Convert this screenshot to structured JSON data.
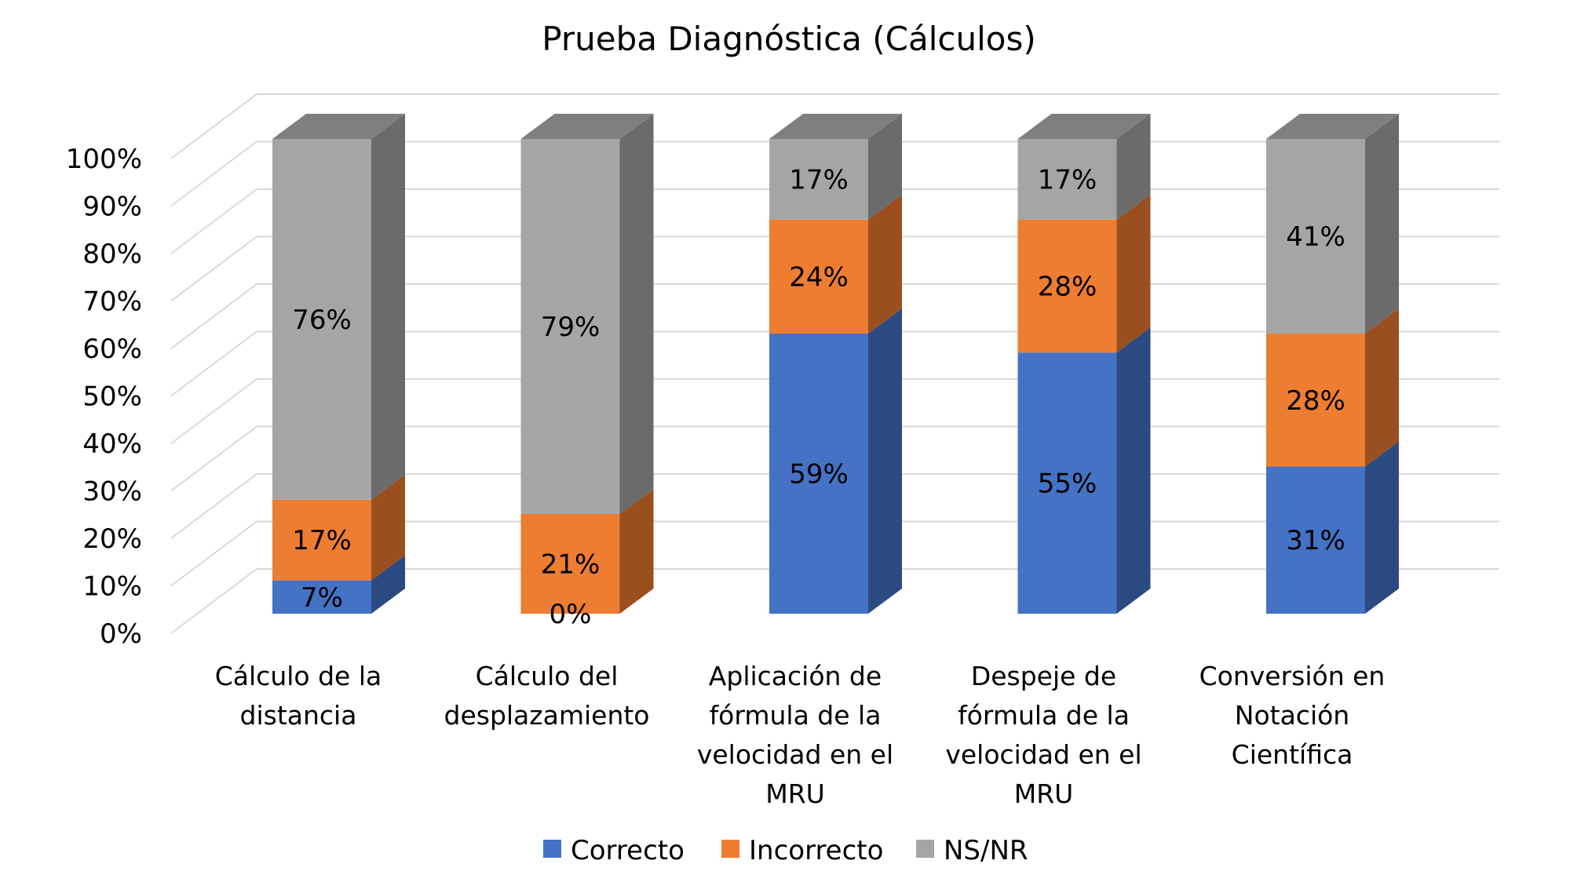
{
  "chart_data": {
    "type": "bar",
    "subtype": "3d-stacked-100",
    "title": "Prueba Diagnóstica (Cálculos)",
    "xlabel": "",
    "ylabel": "",
    "ylim": [
      0,
      100
    ],
    "y_ticks": [
      "0%",
      "10%",
      "20%",
      "30%",
      "40%",
      "50%",
      "60%",
      "70%",
      "80%",
      "90%",
      "100%"
    ],
    "grid": true,
    "legend_position": "bottom",
    "categories": [
      [
        "Cálculo de la",
        "distancia"
      ],
      [
        "Cálculo del",
        "desplazamiento"
      ],
      [
        "Aplicación de",
        "fórmula de la",
        "velocidad en  el",
        "MRU"
      ],
      [
        "Despeje de",
        "fórmula de la",
        "velocidad en  el",
        "MRU"
      ],
      [
        "Conversión en",
        "Notación",
        "Científica"
      ]
    ],
    "series": [
      {
        "name": "Correcto",
        "values": [
          7,
          0,
          59,
          55,
          31
        ],
        "labels": [
          "7%",
          "0%",
          "59%",
          "55%",
          "31%"
        ],
        "color": "#4472C4",
        "side_color": "#2C4A82",
        "top_color": "#3A63AD"
      },
      {
        "name": "Incorrecto",
        "values": [
          17,
          21,
          24,
          28,
          28
        ],
        "labels": [
          "17%",
          "21%",
          "24%",
          "28%",
          "28%"
        ],
        "color": "#ED7D31",
        "side_color": "#9A4F1F",
        "top_color": "#C8682A"
      },
      {
        "name": "NS/NR",
        "values": [
          76,
          79,
          17,
          17,
          41
        ],
        "labels": [
          "76%",
          "79%",
          "17%",
          "17%",
          "41%"
        ],
        "color": "#A5A5A5",
        "side_color": "#6B6B6B",
        "top_color": "#7F7F7F"
      }
    ],
    "gridline_color": "#D9D9D9"
  }
}
